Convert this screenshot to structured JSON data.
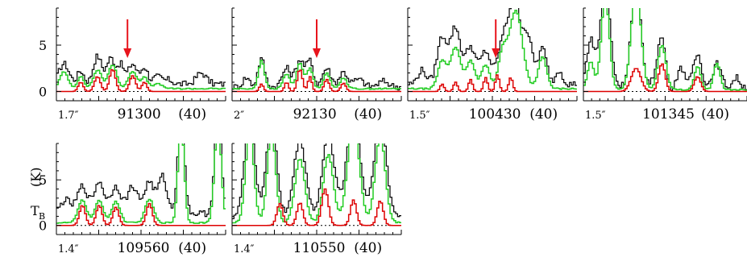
{
  "figure": {
    "ylabel_main": "T",
    "ylabel_sub": "B",
    "ylabel_unit": "(K)",
    "colors": {
      "observed": "#000000",
      "model_all": "#22cc22",
      "model_species": "#dd0000",
      "marker": "#e8141c",
      "baseline": "#000000"
    }
  },
  "chart_data": [
    {
      "type": "line",
      "panel": "91300",
      "beam": "1.7″",
      "label": "91300",
      "velocity": "(40)",
      "ylim": [
        -1,
        9
      ],
      "yticks": [
        0,
        5
      ],
      "has_arrow": true,
      "series": [
        {
          "role": "observed",
          "peaks": [
            [
              0.04,
              2.2,
              0.03
            ],
            [
              0.14,
              1.4,
              0.02
            ],
            [
              0.24,
              3.0,
              0.025
            ],
            [
              0.32,
              2.8,
              0.025
            ],
            [
              0.38,
              2.0,
              0.02
            ],
            [
              0.45,
              2.2,
              0.025
            ],
            [
              0.52,
              1.8,
              0.02
            ],
            [
              0.6,
              0.8,
              0.03
            ],
            [
              0.67,
              0.4,
              0.02
            ],
            [
              0.86,
              1.2,
              0.03
            ]
          ],
          "base": 0.8
        },
        {
          "role": "model_all",
          "peaks": [
            [
              0.04,
              1.8,
              0.025
            ],
            [
              0.14,
              1.3,
              0.02
            ],
            [
              0.24,
              2.0,
              0.025
            ],
            [
              0.33,
              2.6,
              0.025
            ],
            [
              0.45,
              1.9,
              0.025
            ],
            [
              0.52,
              1.2,
              0.02
            ],
            [
              0.6,
              0.5,
              0.03
            ]
          ],
          "base": 0.3
        },
        {
          "role": "model_species",
          "peaks": [
            [
              0.14,
              1.0,
              0.015
            ],
            [
              0.24,
              1.6,
              0.018
            ],
            [
              0.33,
              2.4,
              0.018
            ],
            [
              0.45,
              1.7,
              0.018
            ],
            [
              0.52,
              1.0,
              0.015
            ]
          ],
          "base": 0
        }
      ]
    },
    {
      "type": "line",
      "panel": "92130",
      "beam": "2″",
      "label": "92130",
      "velocity": "(40)",
      "ylim": [
        -1,
        9
      ],
      "yticks": [
        0,
        5
      ],
      "has_arrow": true,
      "series": [
        {
          "role": "observed",
          "peaks": [
            [
              0.08,
              1.0,
              0.02
            ],
            [
              0.17,
              3.0,
              0.02
            ],
            [
              0.32,
              2.0,
              0.025
            ],
            [
              0.4,
              2.9,
              0.025
            ],
            [
              0.46,
              2.7,
              0.02
            ],
            [
              0.56,
              2.0,
              0.025
            ],
            [
              0.66,
              1.6,
              0.025
            ],
            [
              0.75,
              0.8,
              0.03
            ],
            [
              0.9,
              0.6,
              0.03
            ]
          ],
          "base": 0.5
        },
        {
          "role": "model_all",
          "peaks": [
            [
              0.17,
              3.0,
              0.018
            ],
            [
              0.32,
              1.6,
              0.02
            ],
            [
              0.4,
              2.8,
              0.02
            ],
            [
              0.46,
              2.2,
              0.018
            ],
            [
              0.56,
              1.7,
              0.02
            ],
            [
              0.66,
              1.2,
              0.02
            ]
          ],
          "base": 0.3
        },
        {
          "role": "model_species",
          "peaks": [
            [
              0.17,
              0.8,
              0.012
            ],
            [
              0.32,
              1.0,
              0.012
            ],
            [
              0.4,
              2.4,
              0.015
            ],
            [
              0.46,
              1.6,
              0.012
            ],
            [
              0.56,
              1.3,
              0.015
            ],
            [
              0.66,
              0.9,
              0.015
            ]
          ],
          "base": 0
        }
      ]
    },
    {
      "type": "line",
      "panel": "100430",
      "beam": "1.5″",
      "label": "100430",
      "velocity": "(40)",
      "ylim": [
        -1,
        9
      ],
      "yticks": [
        0,
        5
      ],
      "has_arrow": true,
      "series": [
        {
          "role": "observed",
          "peaks": [
            [
              0.08,
              1.5,
              0.025
            ],
            [
              0.2,
              5.0,
              0.03
            ],
            [
              0.28,
              6.0,
              0.03
            ],
            [
              0.37,
              4.0,
              0.03
            ],
            [
              0.46,
              3.5,
              0.03
            ],
            [
              0.56,
              4.0,
              0.03
            ],
            [
              0.63,
              8.8,
              0.035
            ],
            [
              0.71,
              5.0,
              0.03
            ],
            [
              0.8,
              3.8,
              0.025
            ],
            [
              0.9,
              1.5,
              0.02
            ]
          ],
          "base": 0.8
        },
        {
          "role": "model_all",
          "peaks": [
            [
              0.2,
              3.0,
              0.025
            ],
            [
              0.28,
              4.5,
              0.03
            ],
            [
              0.37,
              3.0,
              0.025
            ],
            [
              0.46,
              2.6,
              0.025
            ],
            [
              0.56,
              3.5,
              0.025
            ],
            [
              0.64,
              8.4,
              0.04
            ],
            [
              0.8,
              3.4,
              0.025
            ]
          ],
          "base": 0.3
        },
        {
          "role": "model_species",
          "peaks": [
            [
              0.2,
              0.8,
              0.012
            ],
            [
              0.28,
              1.0,
              0.012
            ],
            [
              0.37,
              1.3,
              0.012
            ],
            [
              0.46,
              1.5,
              0.012
            ],
            [
              0.53,
              1.8,
              0.012
            ],
            [
              0.61,
              1.5,
              0.012
            ]
          ],
          "base": 0
        }
      ]
    },
    {
      "type": "line",
      "panel": "101345",
      "beam": "1.5″",
      "label": "101345",
      "velocity": "(40)",
      "ylim": [
        -1,
        9
      ],
      "yticks": [
        0,
        5
      ],
      "has_arrow": false,
      "series": [
        {
          "role": "observed",
          "peaks": [
            [
              0.04,
              5.0,
              0.025
            ],
            [
              0.13,
              11.0,
              0.03
            ],
            [
              0.32,
              11.0,
              0.03
            ],
            [
              0.48,
              5.5,
              0.03
            ],
            [
              0.6,
              2.0,
              0.025
            ],
            [
              0.7,
              3.5,
              0.025
            ],
            [
              0.82,
              2.5,
              0.025
            ],
            [
              0.94,
              1.0,
              0.02
            ]
          ],
          "dip": [
            0.52,
            -1.5,
            0.02
          ],
          "base": 0.5
        },
        {
          "role": "model_all",
          "peaks": [
            [
              0.04,
              3.0,
              0.02
            ],
            [
              0.13,
              10.0,
              0.025
            ],
            [
              0.32,
              11.0,
              0.03
            ],
            [
              0.48,
              4.8,
              0.025
            ],
            [
              0.7,
              2.5,
              0.02
            ],
            [
              0.82,
              2.8,
              0.02
            ]
          ],
          "base": 0.2
        },
        {
          "role": "model_species",
          "peaks": [
            [
              0.32,
              2.5,
              0.03
            ],
            [
              0.48,
              3.0,
              0.02
            ],
            [
              0.7,
              1.6,
              0.02
            ]
          ],
          "base": 0
        }
      ]
    },
    {
      "type": "line",
      "panel": "109560",
      "beam": "1.4″",
      "label": "109560",
      "velocity": "(40)",
      "ylim": [
        -1,
        9
      ],
      "yticks": [
        0,
        5
      ],
      "has_arrow": false,
      "series": [
        {
          "role": "observed",
          "peaks": [
            [
              0.05,
              1.5,
              0.03
            ],
            [
              0.15,
              3.0,
              0.03
            ],
            [
              0.25,
              3.5,
              0.03
            ],
            [
              0.35,
              3.0,
              0.03
            ],
            [
              0.45,
              3.0,
              0.03
            ],
            [
              0.55,
              3.5,
              0.03
            ],
            [
              0.63,
              4.0,
              0.025
            ],
            [
              0.74,
              11.0,
              0.02
            ],
            [
              0.96,
              11.0,
              0.02
            ]
          ],
          "base": 1.3
        },
        {
          "role": "model_all",
          "peaks": [
            [
              0.15,
              2.5,
              0.025
            ],
            [
              0.25,
              2.4,
              0.025
            ],
            [
              0.35,
              2.3,
              0.025
            ],
            [
              0.55,
              2.6,
              0.025
            ],
            [
              0.74,
              11.0,
              0.018
            ],
            [
              0.96,
              11.0,
              0.02
            ]
          ],
          "base": 0.3
        },
        {
          "role": "model_species",
          "peaks": [
            [
              0.15,
              2.2,
              0.018
            ],
            [
              0.25,
              2.2,
              0.018
            ],
            [
              0.35,
              2.0,
              0.018
            ],
            [
              0.55,
              2.4,
              0.018
            ]
          ],
          "base": 0
        }
      ]
    },
    {
      "type": "line",
      "panel": "110550",
      "beam": "1.4″",
      "label": "110550",
      "velocity": "(40)",
      "ylim": [
        -1,
        9
      ],
      "yticks": [
        0,
        5
      ],
      "has_arrow": false,
      "series": [
        {
          "role": "observed",
          "peaks": [
            [
              0.1,
              11.0,
              0.03
            ],
            [
              0.23,
              11.0,
              0.03
            ],
            [
              0.4,
              8.5,
              0.035
            ],
            [
              0.57,
              9.0,
              0.035
            ],
            [
              0.72,
              11.0,
              0.04
            ],
            [
              0.88,
              11.0,
              0.035
            ]
          ],
          "base": 1.0
        },
        {
          "role": "model_all",
          "peaks": [
            [
              0.1,
              10.0,
              0.025
            ],
            [
              0.23,
              10.0,
              0.025
            ],
            [
              0.4,
              7.0,
              0.03
            ],
            [
              0.57,
              7.5,
              0.03
            ],
            [
              0.72,
              11.0,
              0.035
            ],
            [
              0.88,
              9.5,
              0.03
            ]
          ],
          "base": 0.3
        },
        {
          "role": "model_species",
          "peaks": [
            [
              0.28,
              2.4,
              0.018
            ],
            [
              0.4,
              2.5,
              0.018
            ],
            [
              0.55,
              4.0,
              0.02
            ],
            [
              0.72,
              2.8,
              0.018
            ],
            [
              0.88,
              2.7,
              0.018
            ]
          ],
          "base": 0
        }
      ]
    }
  ]
}
